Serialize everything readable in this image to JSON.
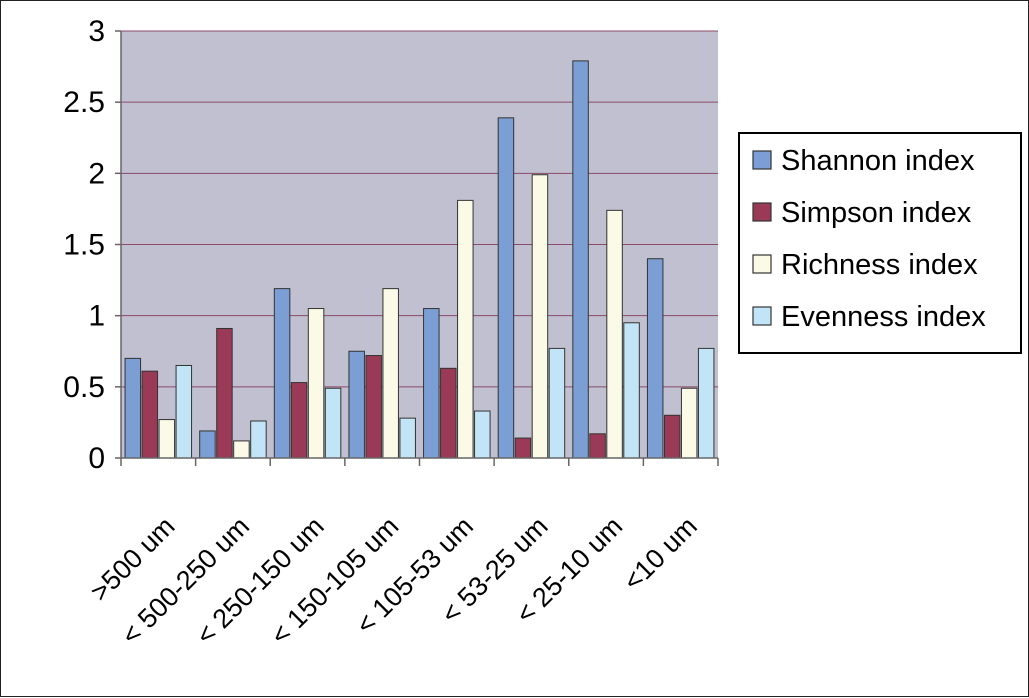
{
  "chart_data": {
    "type": "bar",
    "title": "",
    "xlabel": "",
    "ylabel": "",
    "ylim": [
      0,
      3
    ],
    "yticks": [
      0,
      0.5,
      1,
      1.5,
      2,
      2.5,
      3
    ],
    "ytick_labels": [
      "0",
      "0.5",
      "1",
      "1.5",
      "2",
      "2.5",
      "3"
    ],
    "grid": true,
    "legend_position": "right",
    "categories": [
      ">500 um",
      "< 500-250 um",
      "< 250-150 um",
      "< 150-105 um",
      "< 105-53 um",
      "< 53-25 um",
      "< 25-10 um",
      "<10 um"
    ],
    "series": [
      {
        "name": "Shannon index",
        "color": "#7b9fd4",
        "values": [
          0.7,
          0.19,
          1.19,
          0.75,
          1.05,
          2.39,
          2.79,
          1.4
        ]
      },
      {
        "name": "Simpson index",
        "color": "#9b3a56",
        "values": [
          0.61,
          0.91,
          0.53,
          0.72,
          0.63,
          0.14,
          0.17,
          0.3
        ]
      },
      {
        "name": "Richness index",
        "color": "#fafae6",
        "values": [
          0.27,
          0.12,
          1.05,
          1.19,
          1.81,
          1.99,
          1.74,
          0.49
        ]
      },
      {
        "name": "Evenness index",
        "color": "#c2e4f7",
        "values": [
          0.65,
          0.26,
          0.49,
          0.28,
          0.33,
          0.77,
          0.95,
          0.77
        ]
      }
    ],
    "plot_background": "#c0c0d0",
    "grid_color": "#8a4a68"
  }
}
